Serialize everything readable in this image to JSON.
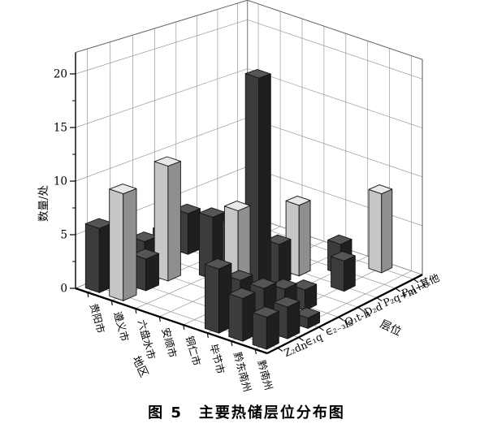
{
  "figure": {
    "caption": "图 5　主要热储层位分布图"
  },
  "chart_data": {
    "type": "bar",
    "projection": "3d",
    "title": "图 5　主要热储层位分布图",
    "x_axis": {
      "label": "地区",
      "categories": [
        "贵阳市",
        "遵义市",
        "六盘水市",
        "安顺市",
        "铜仁市",
        "毕节市",
        "黔东南州",
        "黔南州"
      ]
    },
    "z_axis": {
      "label": "层位",
      "categories": [
        "Z₂dn",
        "∈₁q",
        "∈₂₋₃ls",
        "O₁t-h",
        "D₂d",
        "P₂q+m",
        "P₂l+c",
        "其他"
      ]
    },
    "y_axis": {
      "label": "数量/处",
      "ticks": [
        0,
        5,
        10,
        15,
        20
      ],
      "minor_tick_step": 2.5,
      "max": 22,
      "grid": true
    },
    "series": [
      {
        "region": "贵阳市",
        "values": [
          6,
          0,
          3,
          3,
          4,
          0,
          0,
          0
        ]
      },
      {
        "region": "遵义市",
        "values": [
          10,
          3,
          11,
          0,
          0,
          0,
          0,
          0
        ]
      },
      {
        "region": "六盘水市",
        "values": [
          0,
          0,
          0,
          6,
          0,
          0,
          0,
          0
        ]
      },
      {
        "region": "安顺市",
        "values": [
          0,
          0,
          0,
          6,
          0,
          0,
          0,
          0
        ]
      },
      {
        "region": "铜仁市",
        "values": [
          0,
          0,
          9,
          21,
          4,
          7,
          0,
          0
        ]
      },
      {
        "region": "毕节市",
        "values": [
          6,
          4,
          0,
          0,
          0,
          0,
          3,
          0
        ]
      },
      {
        "region": "黔东南州",
        "values": [
          4,
          4,
          3,
          2,
          0,
          3,
          0,
          8
        ]
      },
      {
        "region": "黔南州",
        "values": [
          3,
          3,
          1,
          0,
          0,
          0,
          0,
          0
        ]
      }
    ],
    "light_gray_bars": [
      [
        1,
        0
      ],
      [
        1,
        2
      ],
      [
        4,
        2
      ],
      [
        4,
        5
      ],
      [
        6,
        7
      ]
    ],
    "colors": {
      "bar_dark": "#3c3c3c",
      "bar_light": "#c6c6c6",
      "grid": "#9a9a9a",
      "axis": "#000000",
      "background": "#ffffff"
    }
  }
}
